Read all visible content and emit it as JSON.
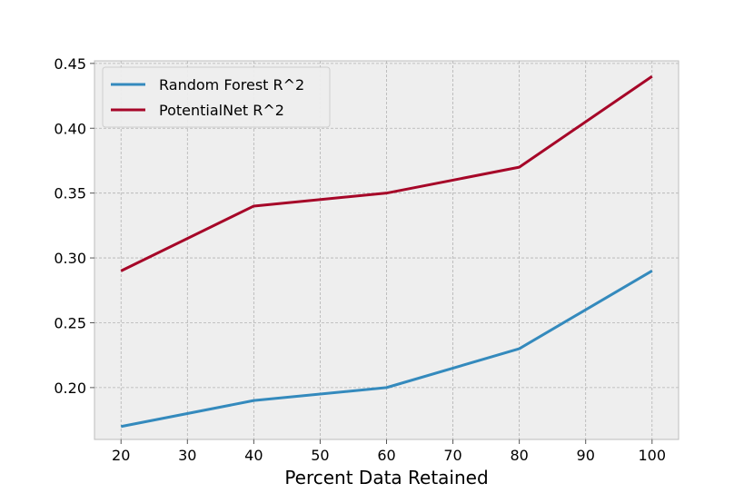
{
  "chart_data": {
    "type": "line",
    "title": "",
    "xlabel": "Percent Data Retained",
    "ylabel": "",
    "x": [
      20,
      40,
      60,
      80,
      100
    ],
    "xlim": [
      16,
      104
    ],
    "ylim": [
      0.16,
      0.452
    ],
    "xticks": [
      20,
      30,
      40,
      50,
      60,
      70,
      80,
      90,
      100
    ],
    "yticks": [
      0.2,
      0.25,
      0.3,
      0.35,
      0.4,
      0.45
    ],
    "ytick_labels": [
      "0.20",
      "0.25",
      "0.30",
      "0.35",
      "0.40",
      "0.45"
    ],
    "grid": true,
    "legend_position": "top-left",
    "series": [
      {
        "name": "Random Forest R^2",
        "color": "#348abd",
        "values": [
          0.17,
          0.19,
          0.2,
          0.23,
          0.29
        ]
      },
      {
        "name": "PotentialNet R^2",
        "color": "#a60628",
        "values": [
          0.29,
          0.34,
          0.35,
          0.37,
          0.44
        ]
      }
    ],
    "background_color": "#eeeeee",
    "grid_color": "#b2b2b2"
  }
}
